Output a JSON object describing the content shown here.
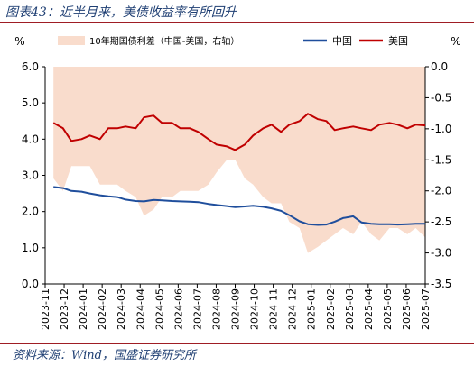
{
  "figure": {
    "title": "图表43：近半月来，美债收益率有所回升",
    "source": "资料来源：Wind，国盛证券研究所"
  },
  "colors": {
    "china": "#1f4e9c",
    "us": "#c00000",
    "spread": "#f9dccc",
    "rule": "#9f1d24"
  },
  "chart_data": {
    "type": "line",
    "left_axis": {
      "unit": "%",
      "ylim": [
        0,
        6
      ],
      "ticks": [
        "0.0",
        "1.0",
        "2.0",
        "3.0",
        "4.0",
        "5.0",
        "6.0"
      ]
    },
    "right_axis": {
      "unit": "%",
      "ylim": [
        -3.5,
        0
      ],
      "ticks": [
        "-3.5",
        "-3.0",
        "-2.5",
        "-2.0",
        "-1.5",
        "-1.0",
        "-0.5",
        "0.0"
      ]
    },
    "x_ticks": [
      "2023-11",
      "2023-12",
      "2024-01",
      "2024-02",
      "2024-03",
      "2024-04",
      "2024-05",
      "2024-06",
      "2024-07",
      "2024-08",
      "2024-09",
      "2024-10",
      "2024-11",
      "2024-12",
      "2025-01",
      "2025-02",
      "2025-03",
      "2025-04",
      "2025-05",
      "2025-06",
      "2025-07"
    ],
    "grid": false,
    "legend": "top",
    "x": [
      "2023-11-15",
      "2023-12-01",
      "2023-12-15",
      "2024-01-01",
      "2024-01-15",
      "2024-02-01",
      "2024-02-15",
      "2024-03-01",
      "2024-03-15",
      "2024-04-01",
      "2024-04-15",
      "2024-05-01",
      "2024-05-15",
      "2024-06-01",
      "2024-06-15",
      "2024-07-01",
      "2024-07-15",
      "2024-08-01",
      "2024-08-15",
      "2024-09-01",
      "2024-09-15",
      "2024-10-01",
      "2024-10-15",
      "2024-11-01",
      "2024-11-15",
      "2024-12-01",
      "2024-12-15",
      "2025-01-01",
      "2025-01-15",
      "2025-02-01",
      "2025-02-15",
      "2025-03-01",
      "2025-03-15",
      "2025-04-01",
      "2025-04-15",
      "2025-05-01",
      "2025-05-15",
      "2025-06-01",
      "2025-06-15",
      "2025-07-01",
      "2025-07-15",
      "2025-07-31"
    ],
    "series": [
      {
        "name": "10年期国债利差（中国-美国，右轴）",
        "axis": "right",
        "style": "area",
        "values": [
          -1.8,
          -2.0,
          -1.6,
          -1.6,
          -1.6,
          -1.9,
          -1.9,
          -1.9,
          -2.0,
          -2.1,
          -2.4,
          -2.3,
          -2.1,
          -2.1,
          -2.0,
          -2.0,
          -2.0,
          -1.9,
          -1.7,
          -1.5,
          -1.5,
          -1.8,
          -1.9,
          -2.1,
          -2.2,
          -2.2,
          -2.5,
          -2.6,
          -3.0,
          -2.9,
          -2.8,
          -2.7,
          -2.6,
          -2.7,
          -2.5,
          -2.7,
          -2.8,
          -2.6,
          -2.6,
          -2.7,
          -2.6,
          -2.75
        ]
      },
      {
        "name": "中国",
        "axis": "left",
        "style": "line",
        "values": [
          2.68,
          2.65,
          2.57,
          2.55,
          2.5,
          2.45,
          2.42,
          2.4,
          2.33,
          2.29,
          2.28,
          2.32,
          2.31,
          2.29,
          2.28,
          2.27,
          2.26,
          2.21,
          2.18,
          2.15,
          2.12,
          2.14,
          2.16,
          2.13,
          2.09,
          2.02,
          1.9,
          1.73,
          1.65,
          1.63,
          1.64,
          1.72,
          1.82,
          1.87,
          1.7,
          1.66,
          1.65,
          1.65,
          1.64,
          1.65,
          1.66,
          1.66
        ]
      },
      {
        "name": "美国",
        "axis": "left",
        "style": "line",
        "values": [
          4.45,
          4.3,
          3.95,
          4.0,
          4.1,
          4.0,
          4.3,
          4.3,
          4.35,
          4.3,
          4.6,
          4.65,
          4.45,
          4.45,
          4.3,
          4.3,
          4.2,
          4.0,
          3.85,
          3.8,
          3.7,
          3.85,
          4.1,
          4.3,
          4.4,
          4.2,
          4.4,
          4.5,
          4.7,
          4.55,
          4.5,
          4.25,
          4.3,
          4.35,
          4.3,
          4.25,
          4.4,
          4.45,
          4.4,
          4.3,
          4.4,
          4.38
        ]
      }
    ]
  }
}
